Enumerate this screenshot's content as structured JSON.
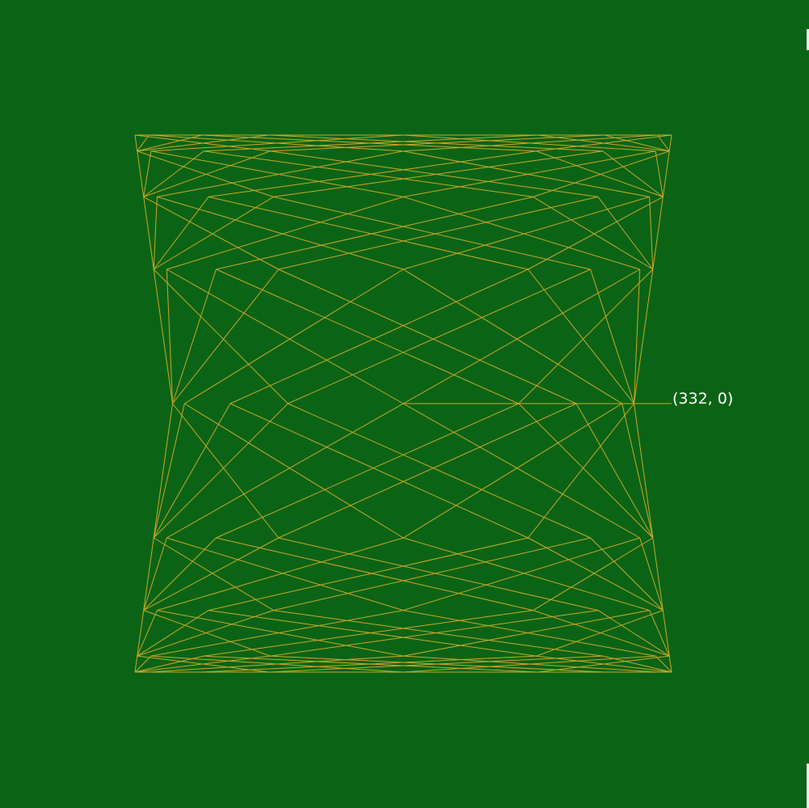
{
  "colors": {
    "background": "#0b6415",
    "line": "#c8a72a",
    "label": "#ffffff"
  },
  "pattern": {
    "rows": 9,
    "row_profile": [
      1,
      0.94,
      0.77,
      0.5,
      0,
      -0.5,
      -0.77,
      -0.94,
      -1
    ],
    "column_profile": [
      1,
      0.948,
      0.75,
      0.5,
      0,
      -0.5,
      -0.75,
      -0.948,
      -1
    ],
    "step": 3
  },
  "marker": {
    "label": "(332, 0)"
  }
}
